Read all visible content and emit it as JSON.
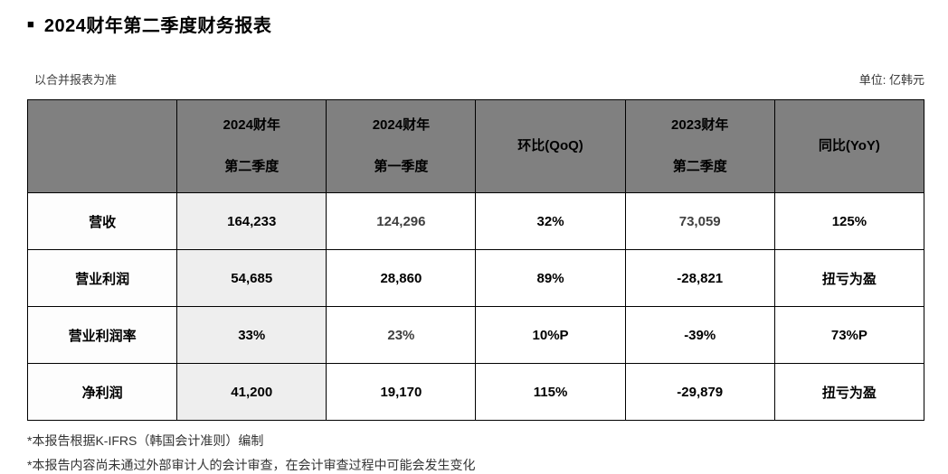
{
  "title": {
    "bullet": "■",
    "text": "2024财年第二季度财务报表"
  },
  "meta": {
    "scope_note": "以合并报表为准",
    "unit_label": "单位: 亿韩元"
  },
  "table": {
    "columns": [
      "",
      "2024财年\n第二季度",
      "2024财年\n第一季度",
      "环比(QoQ)",
      "2023财年\n第二季度",
      "同比(YoY)"
    ],
    "rows": [
      {
        "label": "营收",
        "cells": [
          {
            "text": "164,233"
          },
          {
            "text": "124,296",
            "muted": true
          },
          {
            "text": "32%"
          },
          {
            "text": "73,059",
            "muted": true
          },
          {
            "text": "125%"
          }
        ]
      },
      {
        "label": "营业利润",
        "cells": [
          {
            "text": "54,685"
          },
          {
            "text": "28,860"
          },
          {
            "text": "89%"
          },
          {
            "text": "-28,821"
          },
          {
            "text": "扭亏为盈"
          }
        ]
      },
      {
        "label": "营业利润率",
        "cells": [
          {
            "text": "33%"
          },
          {
            "text": "23%",
            "muted": true
          },
          {
            "text": "10%P"
          },
          {
            "text": "-39%"
          },
          {
            "text": "73%P"
          }
        ]
      },
      {
        "label": "净利润",
        "cells": [
          {
            "text": "41,200"
          },
          {
            "text": "19,170"
          },
          {
            "text": "115%"
          },
          {
            "text": "-29,879"
          },
          {
            "text": "扭亏为盈"
          }
        ]
      }
    ]
  },
  "footnotes": [
    "*本报告根据K-IFRS（韩国会计准则）编制",
    "*本报告内容尚未通过外部审计人的会计审查，在会计审查过程中可能会发生变化"
  ],
  "colors": {
    "header_bg": "#808080",
    "highlight_col_bg": "#eeeeee",
    "border": "#000000",
    "muted_text": "#404040",
    "text": "#000000"
  }
}
